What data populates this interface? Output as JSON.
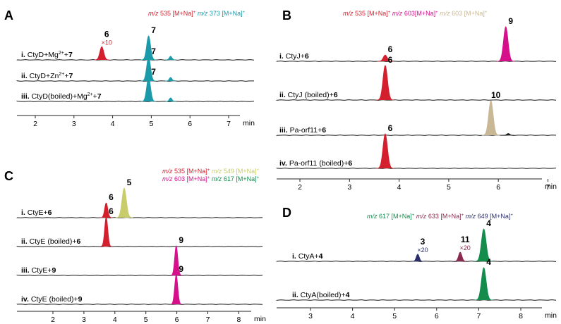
{
  "colors": {
    "m535": "#d4202e",
    "m373": "#1a9aa8",
    "m603": "#d6108a",
    "m603_beige": "#c9b896",
    "m549": "#c8cc6a",
    "m617": "#138c4c",
    "m633": "#8a2a4e",
    "m649": "#2b2e6b",
    "axis": "#222222",
    "trace": "#1a1a1a"
  },
  "chart_data": [
    {
      "panel": "A",
      "type": "line",
      "xlabel": "min",
      "xlim": [
        2,
        8
      ],
      "ticks": [
        "2",
        "3",
        "4",
        "5",
        "6",
        "7"
      ],
      "legend": [
        {
          "mz": "m/z",
          "text": " 535 [M+Na]",
          "sup": "+",
          "color_key": "m535"
        },
        {
          "mz": "m/z",
          "text": " 373 [M+Na]",
          "sup": "+",
          "color_key": "m373"
        }
      ],
      "traces": [
        {
          "roman": "i.",
          "label": [
            {
              "t": " CtyD+Mg",
              "w": "normal"
            },
            {
              "t": "2+",
              "w": "normal",
              "sup": true
            },
            {
              "t": "+",
              "w": "normal"
            },
            {
              "t": "7",
              "w": "bold"
            }
          ],
          "peaks": [
            {
              "x": 3.72,
              "height": 0.55,
              "width": 0.05,
              "color_key": "m535",
              "label": "6",
              "sub": "×10"
            },
            {
              "x": 4.93,
              "height": 1.0,
              "width": 0.05,
              "color_key": "m373",
              "label": "7"
            },
            {
              "x": 5.5,
              "height": 0.15,
              "width": 0.035,
              "color_key": "m373"
            }
          ]
        },
        {
          "roman": "ii.",
          "label": [
            {
              "t": " CtyD+Zn",
              "w": "normal"
            },
            {
              "t": "2+",
              "w": "normal",
              "sup": true
            },
            {
              "t": "+",
              "w": "normal"
            },
            {
              "t": "7",
              "w": "bold"
            }
          ],
          "peaks": [
            {
              "x": 4.93,
              "height": 1.0,
              "width": 0.05,
              "color_key": "m373",
              "label": "7"
            },
            {
              "x": 5.5,
              "height": 0.15,
              "width": 0.035,
              "color_key": "m373"
            }
          ]
        },
        {
          "roman": "iii.",
          "label": [
            {
              "t": " CtyD(boiled)+Mg",
              "w": "normal"
            },
            {
              "t": "2+",
              "w": "normal",
              "sup": true
            },
            {
              "t": "+",
              "w": "normal"
            },
            {
              "t": "7",
              "w": "bold"
            }
          ],
          "peaks": [
            {
              "x": 4.93,
              "height": 1.0,
              "width": 0.05,
              "color_key": "m373",
              "label": "7"
            },
            {
              "x": 5.5,
              "height": 0.15,
              "width": 0.035,
              "color_key": "m373"
            }
          ]
        }
      ]
    },
    {
      "panel": "B",
      "type": "line",
      "xlabel": "min",
      "xlim": [
        2,
        8
      ],
      "ticks": [
        "2",
        "3",
        "4",
        "5",
        "6",
        "7"
      ],
      "legend": [
        {
          "mz": "m/z",
          "text": " 535 [M+Na]",
          "sup": "+",
          "color_key": "m535"
        },
        {
          "mz": "m/z",
          "text": " 603[M+Na]",
          "sup": "+",
          "color_key": "m603"
        },
        {
          "mz": "m/z",
          "text": " 603 [M+Na]",
          "sup": "+",
          "color_key": "m603_beige"
        }
      ],
      "traces": [
        {
          "roman": "i.",
          "label": [
            {
              "t": " CtyJ+",
              "w": "normal"
            },
            {
              "t": "6",
              "w": "bold"
            }
          ],
          "peaks": [
            {
              "x": 3.72,
              "height": 0.18,
              "width": 0.04,
              "color_key": "m535",
              "label": "6"
            },
            {
              "x": 6.15,
              "height": 1.0,
              "width": 0.045,
              "color_key": "m603",
              "label": "9"
            }
          ]
        },
        {
          "roman": "ii.",
          "label": [
            {
              "t": " CtyJ (boiled)+",
              "w": "normal"
            },
            {
              "t": "6",
              "w": "bold"
            }
          ],
          "peaks": [
            {
              "x": 3.72,
              "height": 1.0,
              "width": 0.045,
              "color_key": "m535",
              "label": "6"
            }
          ]
        },
        {
          "roman": "iii.",
          "label": [
            {
              "t": " Pa-orf11+",
              "w": "normal"
            },
            {
              "t": "6",
              "w": "bold"
            }
          ],
          "peaks": [
            {
              "x": 5.85,
              "height": 1.0,
              "width": 0.045,
              "color_key": "m603_beige",
              "label": "10"
            },
            {
              "x": 6.2,
              "height": 0.05,
              "width": 0.03,
              "color_key": "trace"
            }
          ]
        },
        {
          "roman": "iv.",
          "label": [
            {
              "t": " Pa-orf11 (boiled)+",
              "w": "normal"
            },
            {
              "t": "6",
              "w": "bold"
            }
          ],
          "peaks": [
            {
              "x": 3.72,
              "height": 1.0,
              "width": 0.045,
              "color_key": "m535",
              "label": "6"
            }
          ]
        }
      ]
    },
    {
      "panel": "C",
      "type": "line",
      "xlabel": "min",
      "xlim": [
        2,
        8.6
      ],
      "ticks": [
        "2",
        "3",
        "4",
        "5",
        "6",
        "7",
        "8"
      ],
      "legend": [
        {
          "mz": "m/z",
          "text": " 535 [M+Na]",
          "sup": "+",
          "color_key": "m535"
        },
        {
          "mz": "m/z",
          "text": " 549 [M+Na]",
          "sup": "+",
          "color_key": "m549"
        },
        {
          "mz": "m/z",
          "text": " 603 [M+Na]",
          "sup": "+",
          "color_key": "m603"
        },
        {
          "mz": "m/z",
          "text": " 617 [M+Na]",
          "sup": "+",
          "color_key": "m617"
        }
      ],
      "traces": [
        {
          "roman": "i.",
          "label": [
            {
              "t": " CtyE+",
              "w": "normal"
            },
            {
              "t": "6",
              "w": "bold"
            }
          ],
          "peaks": [
            {
              "x": 3.72,
              "height": 0.5,
              "width": 0.05,
              "color_key": "m535",
              "label": "6"
            },
            {
              "x": 4.3,
              "height": 1.0,
              "width": 0.07,
              "color_key": "m549",
              "label": "5"
            }
          ]
        },
        {
          "roman": "ii.",
          "label": [
            {
              "t": " CtyE (boiled)+",
              "w": "normal"
            },
            {
              "t": "6",
              "w": "bold"
            }
          ],
          "peaks": [
            {
              "x": 3.72,
              "height": 1.0,
              "width": 0.05,
              "color_key": "m535",
              "label": "6"
            }
          ]
        },
        {
          "roman": "iii.",
          "label": [
            {
              "t": " CtyE+",
              "w": "normal"
            },
            {
              "t": "9",
              "w": "bold"
            }
          ],
          "peaks": [
            {
              "x": 5.98,
              "height": 1.0,
              "width": 0.05,
              "color_key": "m603",
              "label": "9"
            }
          ]
        },
        {
          "roman": "iv.",
          "label": [
            {
              "t": " CtyE (boiled)+",
              "w": "normal"
            },
            {
              "t": "9",
              "w": "bold"
            }
          ],
          "peaks": [
            {
              "x": 5.98,
              "height": 1.0,
              "width": 0.05,
              "color_key": "m603",
              "label": "9"
            }
          ]
        }
      ]
    },
    {
      "panel": "D",
      "type": "line",
      "xlabel": "min",
      "xlim": [
        2.8,
        9
      ],
      "ticks": [
        "3",
        "4",
        "5",
        "6",
        "7",
        "8"
      ],
      "legend": [
        {
          "mz": "m/z",
          "text": " 617 [M+Na]",
          "sup": "+",
          "color_key": "m617"
        },
        {
          "mz": "m/z",
          "text": " 633 [M+Na]",
          "sup": "+",
          "color_key": "m633"
        },
        {
          "mz": "m/z",
          "text": " 649 [M+Na]",
          "sup": "+",
          "color_key": "m649"
        }
      ],
      "traces": [
        {
          "roman": "i.",
          "label": [
            {
              "t": " CtyA+",
              "w": "normal"
            },
            {
              "t": "4",
              "w": "bold"
            }
          ],
          "peaks": [
            {
              "x": 5.55,
              "height": 0.22,
              "width": 0.035,
              "color_key": "m649",
              "label": "3",
              "sub": "×20"
            },
            {
              "x": 6.56,
              "height": 0.28,
              "width": 0.04,
              "color_key": "m633",
              "label": "11",
              "sub": "×20"
            },
            {
              "x": 7.12,
              "height": 1.0,
              "width": 0.055,
              "color_key": "m617",
              "label": "4"
            }
          ]
        },
        {
          "roman": "ii.",
          "label": [
            {
              "t": " CtyA(boiled)+",
              "w": "normal"
            },
            {
              "t": "4",
              "w": "bold"
            }
          ],
          "peaks": [
            {
              "x": 7.12,
              "height": 1.0,
              "width": 0.055,
              "color_key": "m617",
              "label": "4"
            }
          ]
        }
      ]
    }
  ]
}
